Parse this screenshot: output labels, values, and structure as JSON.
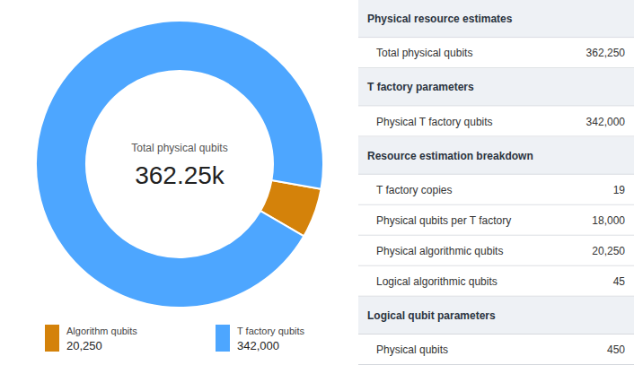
{
  "chart_data": [
    {
      "type": "donut",
      "categories": [
        "Algorithm qubits",
        "T factory qubits"
      ],
      "values": [
        20250,
        342000
      ],
      "value_labels": [
        "20,250",
        "342,000"
      ],
      "colors": [
        "#d4820a",
        "#4da6ff"
      ],
      "annotations": [
        "Total physical qubits",
        "362.25k"
      ],
      "legend": "bottom"
    },
    {
      "type": "table",
      "sections": [
        {
          "title": "Physical resource estimates",
          "categories": [
            "Total physical qubits"
          ],
          "values": [
            362250
          ],
          "value_labels": [
            "362,250"
          ]
        },
        {
          "title": "T factory parameters",
          "categories": [
            "Physical T factory qubits"
          ],
          "values": [
            342000
          ],
          "value_labels": [
            "342,000"
          ]
        },
        {
          "title": "Resource estimation breakdown",
          "categories": [
            "T factory copies",
            "Physical qubits per T factory",
            "Physical algorithmic qubits",
            "Logical algorithmic qubits"
          ],
          "values": [
            19,
            18000,
            20250,
            45
          ],
          "value_labels": [
            "19",
            "18,000",
            "20,250",
            "45"
          ]
        },
        {
          "title": "Logical qubit parameters",
          "categories": [
            "Physical qubits"
          ],
          "values": [
            450
          ],
          "value_labels": [
            "450"
          ]
        }
      ]
    }
  ]
}
